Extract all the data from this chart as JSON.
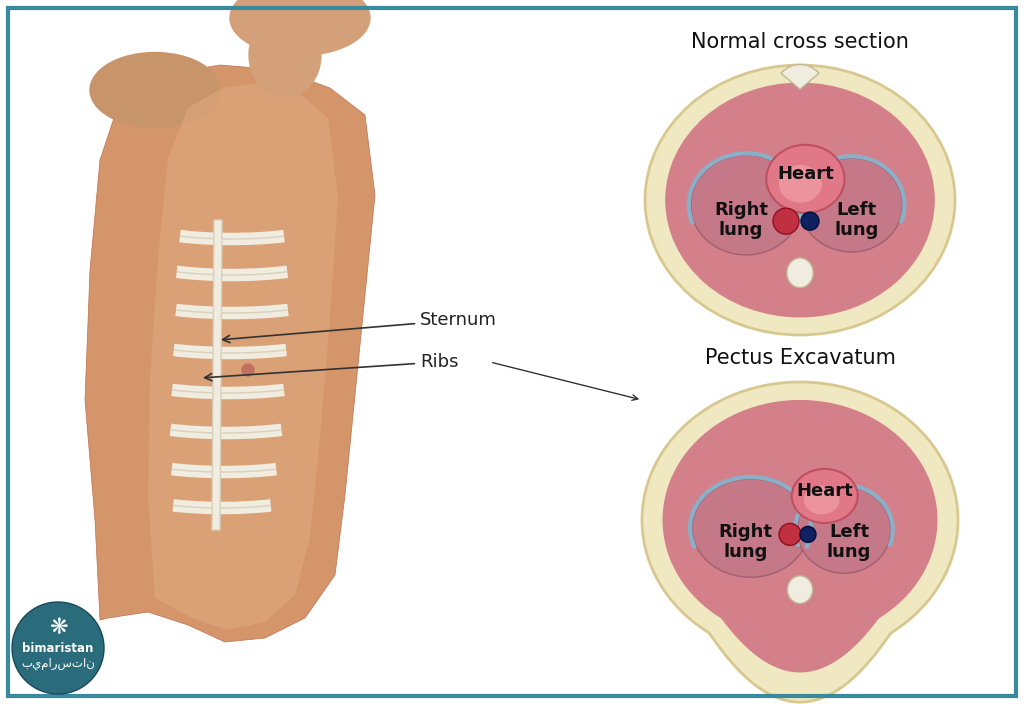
{
  "bg_color": "#ffffff",
  "border_color": "#3a8a9e",
  "border_width": 3,
  "normal_title": "Normal cross section",
  "pectus_title": "Pectus Excavatum",
  "sternum_label": "Sternum",
  "ribs_label": "Ribs",
  "heart_label": "Heart",
  "right_lung_label": "Right\nlung",
  "left_lung_label": "Left\nlung",
  "annotation_color": "#222222",
  "label_fontsize": 13,
  "title_fontsize": 15,
  "rib_color": "#f0ece0",
  "rib_edge": "#d8d0bc",
  "lung_fill": "#c47888",
  "lung_edge": "#a06070",
  "heart_fill": "#e07888",
  "heart_edge": "#c05060",
  "pleura_blue": "#8aafc8",
  "chest_cream": "#f0e8c0",
  "chest_edge": "#d8c890",
  "chest_pink": "#d4808a",
  "spine_fill": "#f0ece0",
  "spine_edge": "#c0b890",
  "vessel_red": "#c03040",
  "vessel_blue": "#102060",
  "logo_color": "#2a6b7c"
}
